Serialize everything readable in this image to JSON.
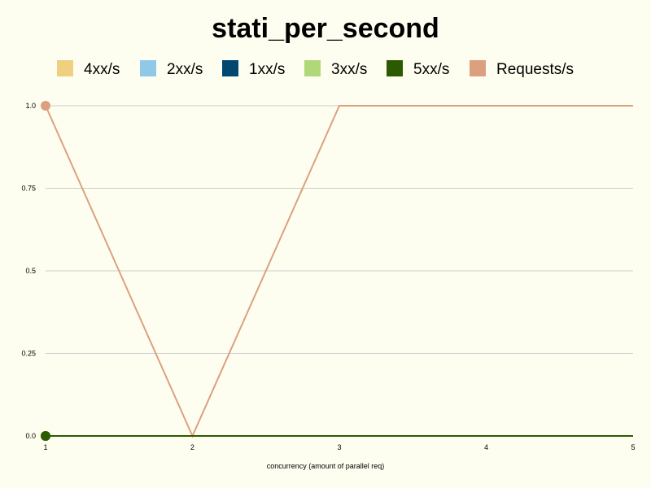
{
  "chart_data": {
    "type": "line",
    "title": "stati_per_second",
    "xlabel": "concurrency (amount of parallel req)",
    "ylabel": "",
    "x": [
      1,
      2,
      3,
      4,
      5
    ],
    "xlim": [
      1,
      5
    ],
    "ylim": [
      0,
      1
    ],
    "yticks": [
      "0.0",
      "0.25",
      "0.5",
      "0.75",
      "1.0"
    ],
    "xticks": [
      "1",
      "2",
      "3",
      "4",
      "5"
    ],
    "grid": true,
    "legend_position": "top",
    "series": [
      {
        "name": "4xx/s",
        "color": "#f0d080",
        "values": [
          0,
          0,
          0,
          0,
          0
        ]
      },
      {
        "name": "2xx/s",
        "color": "#90c8e8",
        "values": [
          0,
          0,
          0,
          0,
          0
        ]
      },
      {
        "name": "1xx/s",
        "color": "#004870",
        "values": [
          0,
          0,
          0,
          0,
          0
        ]
      },
      {
        "name": "3xx/s",
        "color": "#b0d878",
        "values": [
          0,
          0,
          0,
          0,
          0
        ]
      },
      {
        "name": "5xx/s",
        "color": "#2c5a00",
        "values": [
          0,
          0,
          0,
          0,
          0
        ]
      },
      {
        "name": "Requests/s",
        "color": "#dca080",
        "values": [
          1,
          0,
          1,
          1,
          1
        ]
      }
    ]
  }
}
